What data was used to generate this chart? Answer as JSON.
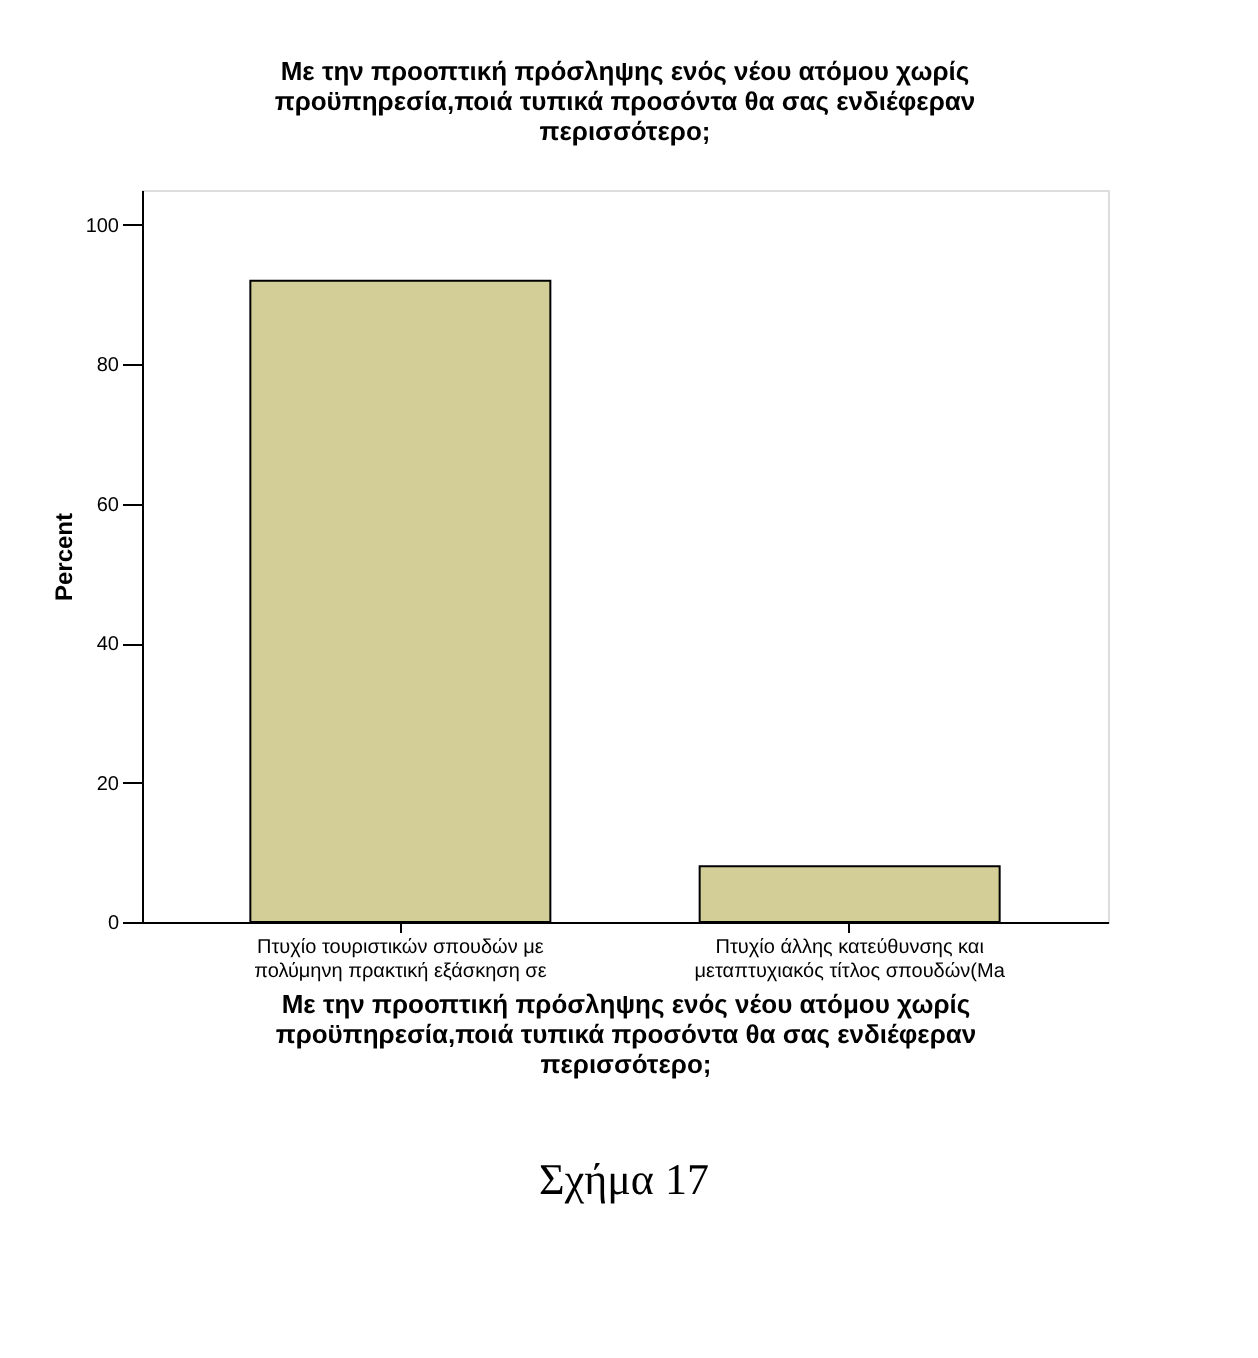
{
  "chart_data": {
    "type": "bar",
    "title": "Με την προοπτική πρόσληψης ενός νέου ατόμου χωρίς προϋπηρεσία,ποιά τυπικά προσόντα θα σας ενδιέφεραν περισσότερο;",
    "xlabel": "Με την προοπτική πρόσληψης ενός νέου ατόμου χωρίς προϋπηρεσία,ποιά τυπικά προσόντα θα σας ενδιέφεραν περισσότερο;",
    "ylabel": "Percent",
    "categories": [
      "Πτυχίο τουριστικών σπουδών με πολύμηνη πρακτική εξάσκηση σε",
      "Πτυχίο άλλης κατεύθυνσης και μεταπτυχιακός τίτλος σπουδών(Ma"
    ],
    "values": [
      92,
      8
    ],
    "color": "#d3ce97",
    "ylim": [
      0,
      105
    ],
    "yticks": [
      0,
      20,
      40,
      60,
      80,
      100
    ],
    "grid": false,
    "annotations": [
      "Σχήμα 17"
    ]
  }
}
